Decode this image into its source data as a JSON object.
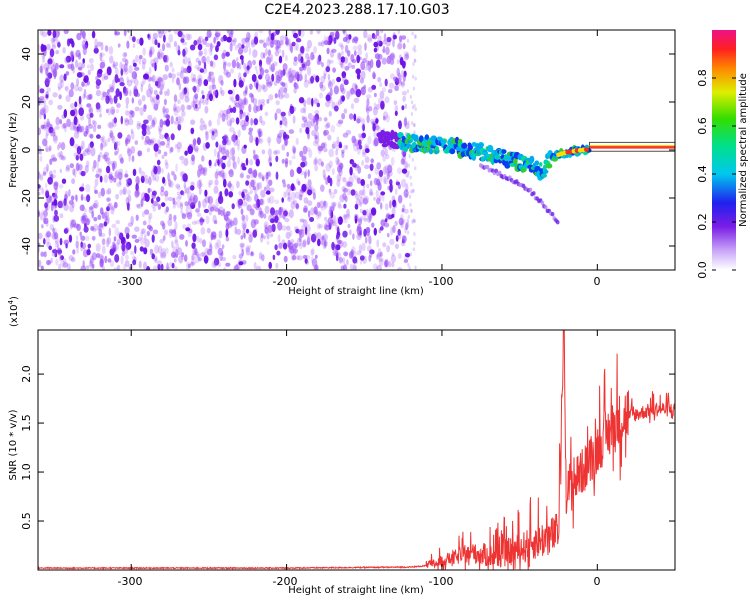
{
  "title": "C2E4.2023.288.17.10.G03",
  "colors": {
    "snr_line": "#ee3333",
    "spec_dots": "#8a3cf5",
    "axis": "#000000"
  },
  "chart_data": [
    {
      "type": "heatmap",
      "name": "spectrogram",
      "xlabel": "Height of straight line (km)",
      "ylabel": "Frequency (Hz)",
      "xlim": [
        -360,
        50
      ],
      "ylim": [
        -50,
        50
      ],
      "xticks": [
        -300,
        -200,
        -100,
        0
      ],
      "yticks": [
        -40,
        -20,
        0,
        20,
        40
      ],
      "xtick_labels": [
        "-300",
        "-200",
        "-100",
        "0"
      ],
      "ytick_labels": [
        "-40",
        "-20",
        "0",
        "20",
        "40"
      ],
      "noise_region_x": [
        -360,
        -122
      ],
      "signal_track": {
        "x": [
          -140,
          -120,
          -100,
          -80,
          -60,
          -45,
          -35,
          -30,
          -20,
          -10,
          0,
          50
        ],
        "y": [
          5,
          3,
          2,
          0,
          -3,
          -6,
          -9,
          -3,
          -1,
          0,
          0.5,
          1
        ]
      },
      "secondary_branch": {
        "x": [
          -75,
          -60,
          -45,
          -36,
          -25
        ],
        "y": [
          -6,
          -11,
          -16,
          -22,
          -30
        ]
      },
      "colorbar": {
        "label": "Normalized spectral amplitude",
        "range": [
          0,
          1
        ],
        "ticks": [
          0.0,
          0.2,
          0.4,
          0.6,
          0.8
        ],
        "tick_labels": [
          "0.0",
          "0.2",
          "0.4",
          "0.6",
          "0.8"
        ]
      }
    },
    {
      "type": "line",
      "name": "snr",
      "xlabel": "Height of straight line (km)",
      "ylabel": "SNR (10 * v/v)",
      "scale_label": "(x10",
      "scale_exp": "4",
      "xlim": [
        -360,
        50
      ],
      "ylim": [
        0,
        2.45
      ],
      "xticks": [
        -300,
        -200,
        -100,
        0
      ],
      "yticks": [
        0.5,
        1.0,
        1.5,
        2.0
      ],
      "xtick_labels": [
        "-300",
        "-200",
        "-100",
        "0"
      ],
      "ytick_labels": [
        "0.5",
        "1.0",
        "1.5",
        "2.0"
      ],
      "series": [
        {
          "x": [
            -360,
            -300,
            -200,
            -120,
            -105,
            -100,
            -90,
            -80,
            -70,
            -60,
            -50,
            -40,
            -30,
            -25,
            -21.5,
            -20,
            -15,
            -10,
            -5,
            0,
            10,
            20,
            30,
            40,
            50
          ],
          "y": [
            0.02,
            0.02,
            0.02,
            0.03,
            0.05,
            0.08,
            0.12,
            0.15,
            0.12,
            0.14,
            0.18,
            0.25,
            0.3,
            0.35,
            2.45,
            0.75,
            0.85,
            0.95,
            1.05,
            1.2,
            1.4,
            1.55,
            1.6,
            1.63,
            1.62
          ]
        }
      ]
    }
  ]
}
